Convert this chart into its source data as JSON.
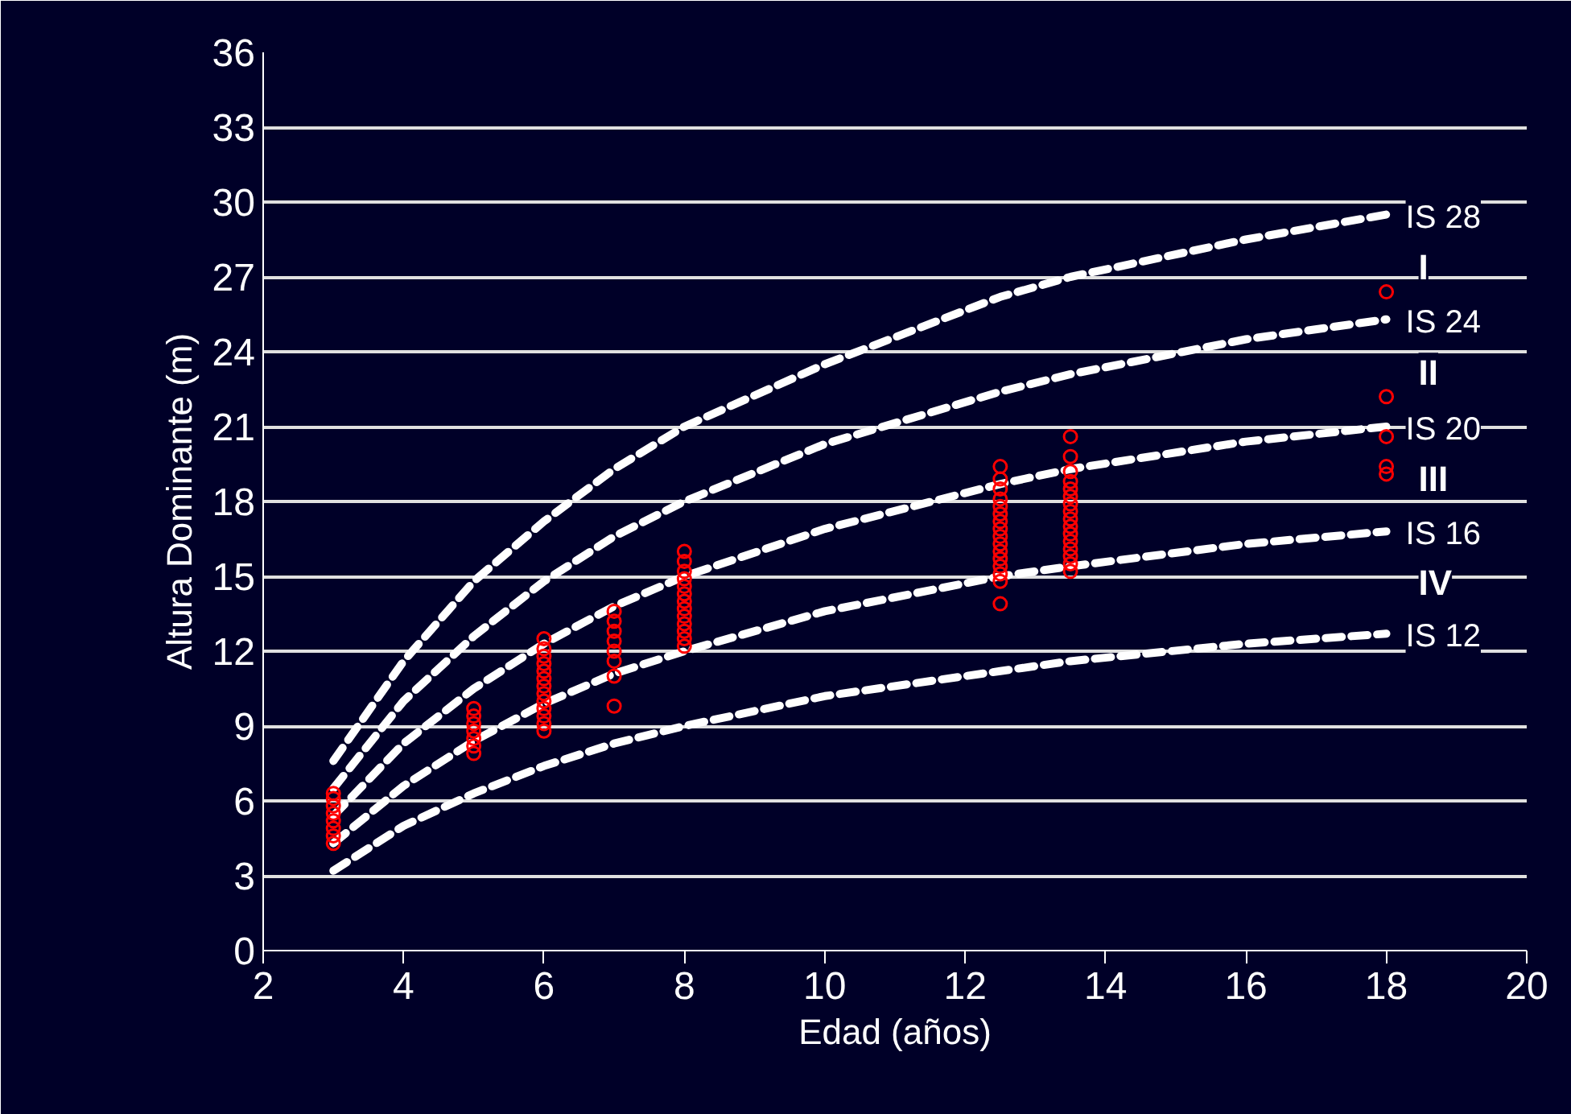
{
  "chart_data": {
    "type": "line",
    "xlabel": "Edad (años)",
    "ylabel": "Altura Dominante (m)",
    "xlim": [
      2,
      20
    ],
    "xticks": [
      2,
      4,
      6,
      8,
      10,
      12,
      14,
      16,
      18,
      20
    ],
    "ylim": [
      0,
      36
    ],
    "yticks": [
      0,
      3,
      6,
      9,
      12,
      15,
      18,
      21,
      24,
      27,
      30,
      33,
      36
    ],
    "grid": "y",
    "line_style": "dashed",
    "series": [
      {
        "name": "IS 28",
        "color": "#ffffff",
        "x": [
          3,
          4,
          5,
          6,
          7,
          8,
          10,
          12.5,
          13.5,
          16,
          18
        ],
        "values": [
          7.6,
          11.6,
          14.8,
          17.2,
          19.3,
          21,
          23.5,
          26.2,
          27,
          28.5,
          29.5
        ]
      },
      {
        "name": "IS 24",
        "color": "#ffffff",
        "x": [
          3,
          4,
          5,
          6,
          7,
          8,
          10,
          12.5,
          13.5,
          16,
          18
        ],
        "values": [
          6.5,
          10,
          12.6,
          14.8,
          16.6,
          18,
          20.3,
          22.4,
          23.1,
          24.5,
          25.3
        ]
      },
      {
        "name": "IS 20",
        "color": "#ffffff",
        "x": [
          3,
          4,
          5,
          6,
          7,
          8,
          10,
          12.5,
          13.5,
          16,
          18
        ],
        "values": [
          5.4,
          8.3,
          10.5,
          12.3,
          13.8,
          15,
          16.9,
          18.7,
          19.3,
          20.4,
          21
        ]
      },
      {
        "name": "IS 16",
        "color": "#ffffff",
        "x": [
          3,
          4,
          5,
          6,
          7,
          8,
          10,
          12.5,
          13.5,
          16,
          18
        ],
        "values": [
          4.3,
          6.6,
          8.4,
          9.9,
          11.1,
          12,
          13.6,
          15,
          15.4,
          16.3,
          16.8
        ]
      },
      {
        "name": "IS 12",
        "color": "#ffffff",
        "x": [
          3,
          4,
          5,
          6,
          7,
          8,
          10,
          12.5,
          13.5,
          16,
          18
        ],
        "values": [
          3.2,
          5,
          6.3,
          7.4,
          8.3,
          9,
          10.2,
          11.2,
          11.6,
          12.3,
          12.7
        ]
      },
      {
        "type": "scatter",
        "marker": "circle",
        "color": "#ff0000",
        "x": [
          3,
          3,
          3,
          3,
          3,
          3,
          3,
          3,
          5,
          5,
          5,
          5,
          5,
          5,
          5,
          6,
          6,
          6,
          6,
          6,
          6,
          6,
          6,
          6,
          6,
          6,
          6,
          6,
          7,
          7,
          7,
          7,
          7,
          7,
          7,
          7,
          8,
          8,
          8,
          8,
          8,
          8,
          8,
          8,
          8,
          8,
          8,
          8,
          8,
          12.5,
          12.5,
          12.5,
          12.5,
          12.5,
          12.5,
          12.5,
          12.5,
          12.5,
          12.5,
          12.5,
          12.5,
          12.5,
          12.5,
          12.5,
          12.5,
          13.5,
          13.5,
          13.5,
          13.5,
          13.5,
          13.5,
          13.5,
          13.5,
          13.5,
          13.5,
          13.5,
          13.5,
          13.5,
          13.5,
          13.5,
          13.5,
          18,
          18,
          18,
          18,
          18
        ],
        "values": [
          4.3,
          4.6,
          4.9,
          5.2,
          5.5,
          5.8,
          6.1,
          6.3,
          7.9,
          8.2,
          8.5,
          8.8,
          9.1,
          9.4,
          9.7,
          8.8,
          9.1,
          9.4,
          9.7,
          10,
          10.3,
          10.6,
          10.9,
          11.2,
          11.5,
          11.8,
          12.1,
          12.5,
          9.8,
          11,
          11.6,
          12,
          12.4,
          12.8,
          13.2,
          13.6,
          12.2,
          12.5,
          12.8,
          13.1,
          13.4,
          13.7,
          14,
          14.3,
          14.6,
          14.9,
          15.2,
          15.6,
          16,
          13.9,
          14.8,
          15.1,
          15.4,
          15.7,
          16,
          16.3,
          16.6,
          16.9,
          17.2,
          17.5,
          17.8,
          18.1,
          18.5,
          18.9,
          19.4,
          15.2,
          15.5,
          15.8,
          16.1,
          16.4,
          16.7,
          17,
          17.3,
          17.6,
          17.9,
          18.2,
          18.5,
          18.8,
          19.2,
          19.8,
          20.6,
          26.4,
          22.2,
          20.6,
          19.4,
          19.1
        ]
      }
    ],
    "annotations": [
      "I",
      "II",
      "III",
      "IV"
    ]
  }
}
